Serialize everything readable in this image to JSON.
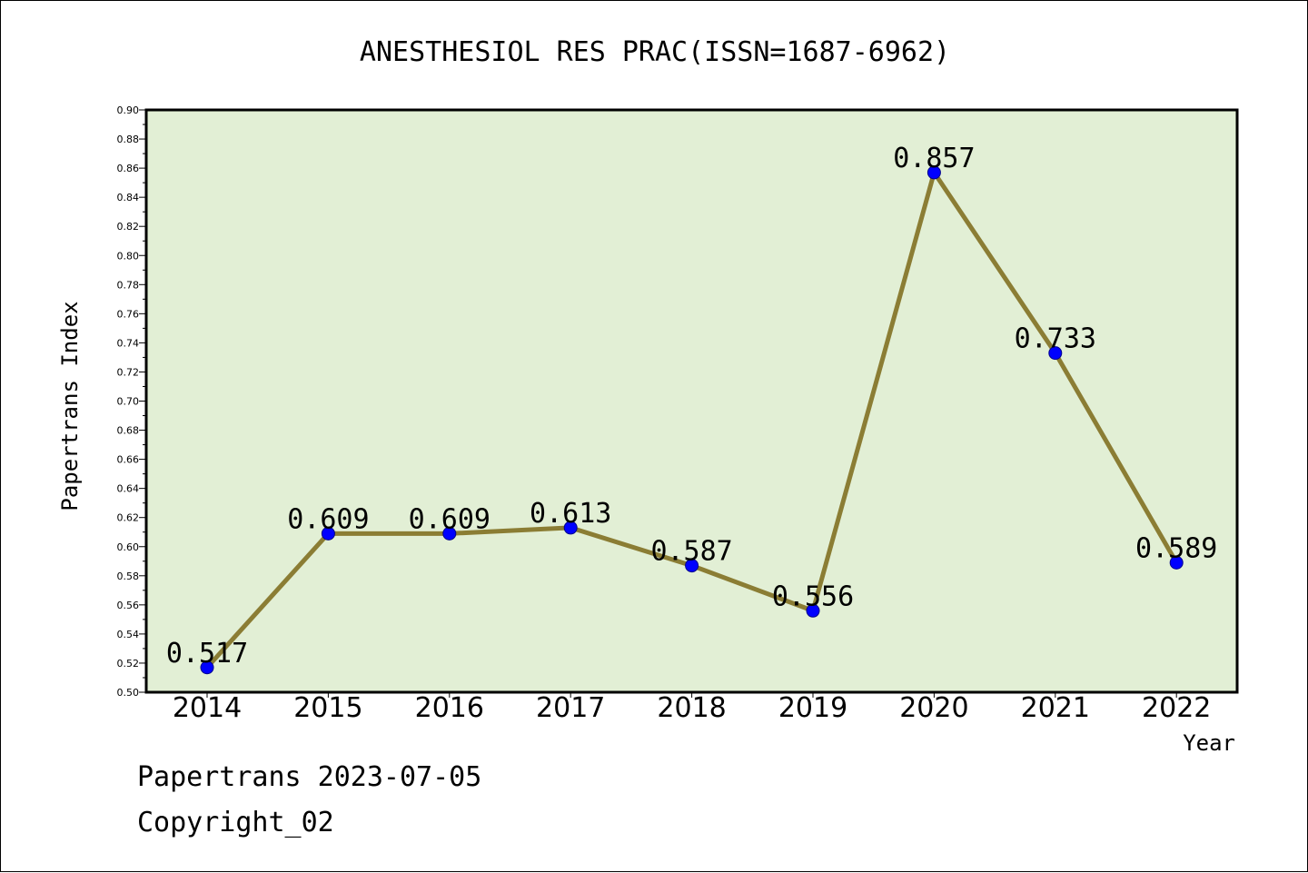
{
  "chart_data": {
    "type": "line",
    "title": "ANESTHESIOL RES PRAC(ISSN=1687-6962)",
    "xlabel": "Year",
    "ylabel": "Papertrans Index",
    "categories": [
      "2014",
      "2015",
      "2016",
      "2017",
      "2018",
      "2019",
      "2020",
      "2021",
      "2022"
    ],
    "series": [
      {
        "values": [
          0.517,
          0.609,
          0.609,
          0.613,
          0.587,
          0.556,
          0.857,
          0.733,
          0.589
        ],
        "labels": [
          "0.517",
          "0.609",
          "0.609",
          "0.613",
          "0.587",
          "0.556",
          "0.857",
          "0.733",
          "0.589"
        ]
      }
    ],
    "ylim": [
      0.5,
      0.9
    ],
    "yticks": [
      "0.50",
      "0.52",
      "0.54",
      "0.56",
      "0.58",
      "0.60",
      "0.62",
      "0.64",
      "0.66",
      "0.68",
      "0.70",
      "0.72",
      "0.74",
      "0.76",
      "0.78",
      "0.80",
      "0.82",
      "0.84",
      "0.86",
      "0.88",
      "0.90"
    ],
    "grid": false,
    "colors": {
      "plot_background": "#e2efd5",
      "line": "#8b7d34",
      "marker": "#0000ff"
    }
  },
  "footer": {
    "line1": "Papertrans 2023-07-05",
    "line2": "Copyright_02"
  }
}
